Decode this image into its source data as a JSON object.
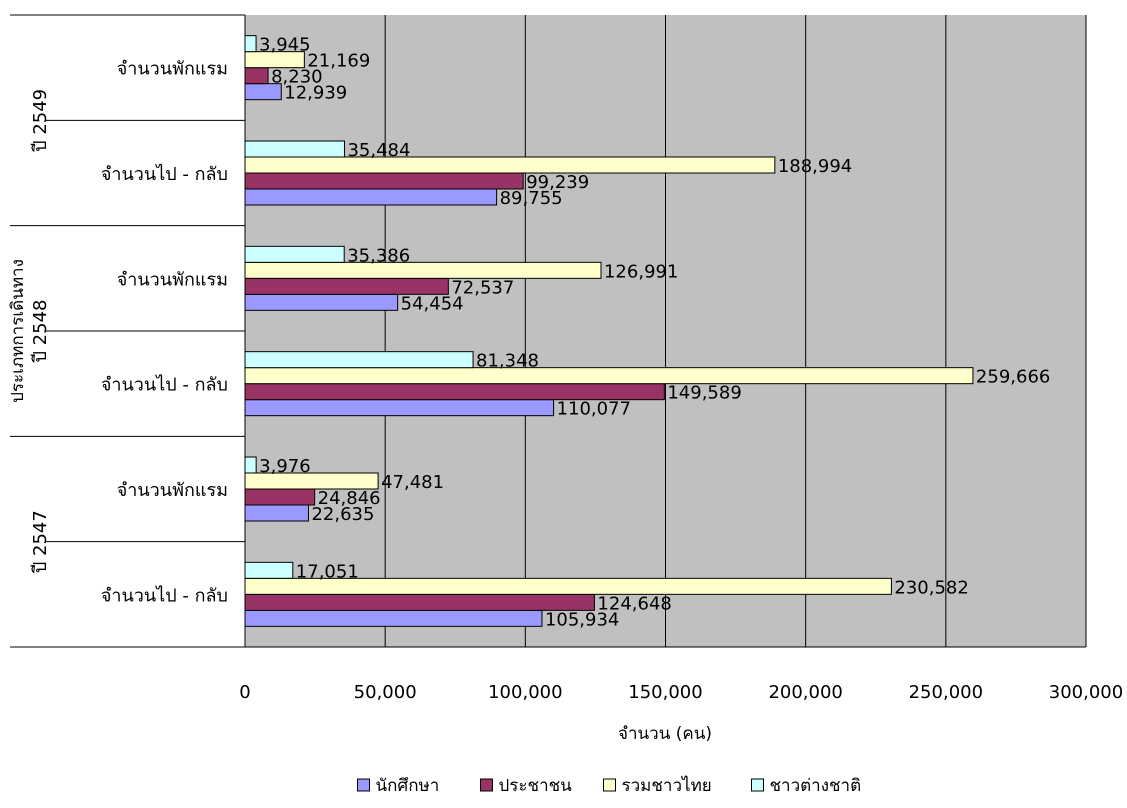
{
  "chart_data": {
    "type": "bar",
    "orientation": "horizontal",
    "xlabel": "จำนวน (คน)",
    "ylabel": "ประเภทการเดินทาง",
    "xlim": [
      0,
      300000
    ],
    "xticks": [
      "0",
      "50,000",
      "100,000",
      "150,000",
      "200,000",
      "250,000",
      "300,000"
    ],
    "grid": "vertical",
    "legend_position": "bottom",
    "groups": [
      {
        "year_label": "ปี 2547",
        "categories": [
          {
            "label": "จำนวนไป - กลับ",
            "values": [
              105934,
              124648,
              230582,
              17051
            ],
            "value_labels": [
              "105,934",
              "124,648",
              "230,582",
              "17,051"
            ]
          },
          {
            "label": "จำนวนพักแรม",
            "values": [
              22635,
              24846,
              47481,
              3976
            ],
            "value_labels": [
              "22,635",
              "24,846",
              "47,481",
              "3,976"
            ]
          }
        ]
      },
      {
        "year_label": "ปี 2548",
        "categories": [
          {
            "label": "จำนวนไป - กลับ",
            "values": [
              110077,
              149589,
              259666,
              81348
            ],
            "value_labels": [
              "110,077",
              "149,589",
              "259,666",
              "81,348"
            ]
          },
          {
            "label": "จำนวนพักแรม",
            "values": [
              54454,
              72537,
              126991,
              35386
            ],
            "value_labels": [
              "54,454",
              "72,537",
              "126,991",
              "35,386"
            ]
          }
        ]
      },
      {
        "year_label": "ปี 2549",
        "categories": [
          {
            "label": "จำนวนไป - กลับ",
            "values": [
              89755,
              99239,
              188994,
              35484
            ],
            "value_labels": [
              "89,755",
              "99,239",
              "188,994",
              "35,484"
            ]
          },
          {
            "label": "จำนวนพักแรม",
            "values": [
              12939,
              8230,
              21169,
              3945
            ],
            "value_labels": [
              "12,939",
              "8,230",
              "21,169",
              "3,945"
            ]
          }
        ]
      }
    ],
    "series": [
      {
        "name": "นักศึกษา",
        "color": "#9999ff"
      },
      {
        "name": "ประชาชน",
        "color": "#993366"
      },
      {
        "name": "รวมชาวไทย",
        "color": "#ffffcc"
      },
      {
        "name": "ชาวต่างชาติ",
        "color": "#ccffff"
      }
    ],
    "plot_background": "#c0c0c0"
  }
}
